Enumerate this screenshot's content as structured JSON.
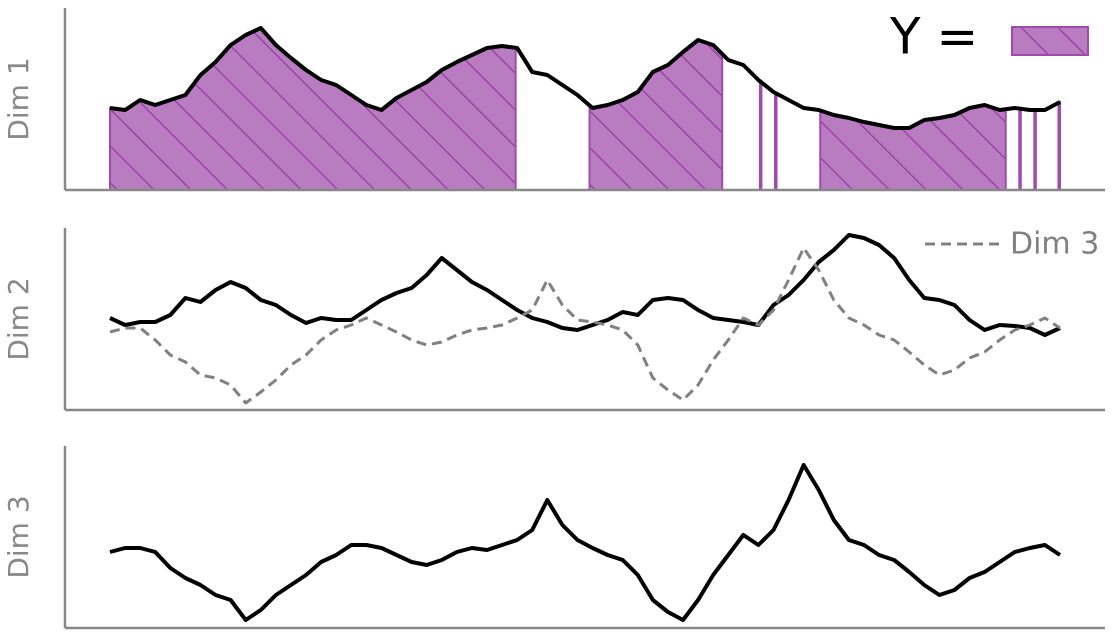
{
  "chart_data": [
    {
      "type": "line",
      "ylabel": "Dim 1",
      "xlim": [
        0,
        63
      ],
      "ylim": [
        0,
        182
      ],
      "series": [
        {
          "color": "#000000",
          "values": [
            82,
            80,
            90,
            85,
            90,
            95,
            115,
            128,
            145,
            155,
            162,
            145,
            132,
            120,
            110,
            105,
            95,
            85,
            80,
            92,
            100,
            108,
            120,
            128,
            135,
            142,
            144,
            142,
            118,
            115,
            105,
            95,
            82,
            85,
            90,
            98,
            118,
            125,
            138,
            150,
            145,
            130,
            125,
            110,
            98,
            90,
            82,
            80,
            75,
            72,
            68,
            65,
            62,
            62,
            70,
            72,
            75,
            82,
            85,
            80,
            82,
            80,
            80,
            88
          ]
        }
      ],
      "spans": [
        [
          0,
          26.9
        ],
        [
          31.8,
          40.6
        ],
        [
          43.1,
          43.2
        ],
        [
          44.1,
          44.2
        ],
        [
          47.1,
          59.4
        ],
        [
          60.3,
          60.4
        ],
        [
          61.3,
          61.4
        ],
        [
          62.9,
          63
        ]
      ],
      "span_label": "Y =",
      "span_color": "#b97cc0",
      "span_edge": "#a04aae"
    },
    {
      "type": "line",
      "ylabel": "Dim 2",
      "xlim": [
        0,
        63
      ],
      "ylim": [
        0,
        182
      ],
      "series": [
        {
          "color": "#000000",
          "values": [
            92,
            85,
            88,
            88,
            95,
            112,
            108,
            120,
            128,
            122,
            110,
            105,
            95,
            87,
            92,
            90,
            90,
            100,
            110,
            117,
            122,
            135,
            152,
            140,
            128,
            120,
            110,
            100,
            92,
            88,
            82,
            80,
            85,
            90,
            98,
            95,
            110,
            112,
            110,
            100,
            92,
            90,
            88,
            85,
            105,
            115,
            130,
            148,
            160,
            175,
            172,
            165,
            152,
            130,
            112,
            110,
            105,
            90,
            80,
            85,
            84,
            82,
            75,
            82
          ]
        },
        {
          "name": "Dim 3",
          "color": "#808080",
          "dashed": true,
          "values": [
            78,
            82,
            82,
            70,
            55,
            48,
            35,
            32,
            25,
            7,
            18,
            30,
            45,
            55,
            70,
            80,
            85,
            92,
            85,
            78,
            70,
            65,
            68,
            75,
            80,
            82,
            85,
            92,
            100,
            130,
            105,
            90,
            88,
            85,
            80,
            65,
            32,
            20,
            10,
            25,
            50,
            70,
            92,
            85,
            100,
            130,
            162,
            140,
            110,
            92,
            85,
            75,
            70,
            58,
            45,
            35,
            40,
            52,
            58,
            70,
            80,
            85,
            92,
            82
          ]
        }
      ]
    },
    {
      "type": "line",
      "ylabel": "Dim 3",
      "xlim": [
        0,
        63
      ],
      "ylim": [
        0,
        182
      ],
      "series": [
        {
          "color": "#000000",
          "values": [
            76,
            80,
            80,
            76,
            60,
            50,
            43,
            33,
            28,
            8,
            18,
            33,
            43,
            53,
            66,
            73,
            83,
            83,
            80,
            73,
            66,
            63,
            68,
            76,
            80,
            78,
            83,
            88,
            98,
            128,
            103,
            88,
            80,
            73,
            68,
            53,
            28,
            16,
            8,
            28,
            53,
            73,
            93,
            83,
            98,
            128,
            163,
            138,
            108,
            88,
            83,
            73,
            68,
            56,
            43,
            33,
            38,
            50,
            56,
            66,
            76,
            80,
            83,
            73
          ]
        }
      ]
    }
  ]
}
